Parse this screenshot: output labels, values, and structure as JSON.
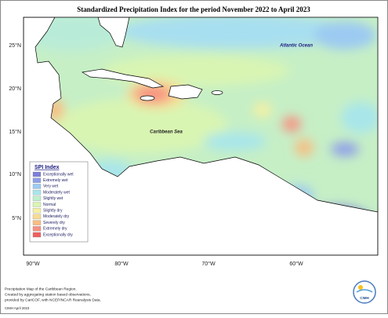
{
  "title": "Standardized Precipitation Index for the period November 2022 to April 2023",
  "map": {
    "lat_labels": [
      "25°N",
      "20°N",
      "15°N",
      "10°N",
      "5°N"
    ],
    "lon_labels": [
      "90°W",
      "80°W",
      "70°W",
      "60°W"
    ],
    "places": [
      "Atlantic Ocean",
      "Caribbean Sea"
    ]
  },
  "legend": {
    "title": "SPI Index",
    "items": [
      {
        "label": "Exceptionally wet",
        "color": "#7d7fd8"
      },
      {
        "label": "Extremely wet",
        "color": "#8f9fe8"
      },
      {
        "label": "Very wet",
        "color": "#9ccaf2"
      },
      {
        "label": "Moderately wet",
        "color": "#a9e6ea"
      },
      {
        "label": "Slightly wet",
        "color": "#bdf0cc"
      },
      {
        "label": "Normal",
        "color": "#d9f5b2"
      },
      {
        "label": "Slightly dry",
        "color": "#f4f0a2"
      },
      {
        "label": "Moderately dry",
        "color": "#f8dc92"
      },
      {
        "label": "Severely dry",
        "color": "#f8bd82"
      },
      {
        "label": "Extremely dry",
        "color": "#f79282"
      },
      {
        "label": "Exceptionally dry",
        "color": "#ef6060"
      }
    ]
  },
  "footer": {
    "lines": [
      "Precipitation Map of the Caribbean Region.",
      "Created by aggregating station based observations,",
      "provided by CariCOF, with NCEP/NCAR Reanalysis Data."
    ],
    "credit": "CIMH April 2023",
    "logo": "CIMH"
  }
}
